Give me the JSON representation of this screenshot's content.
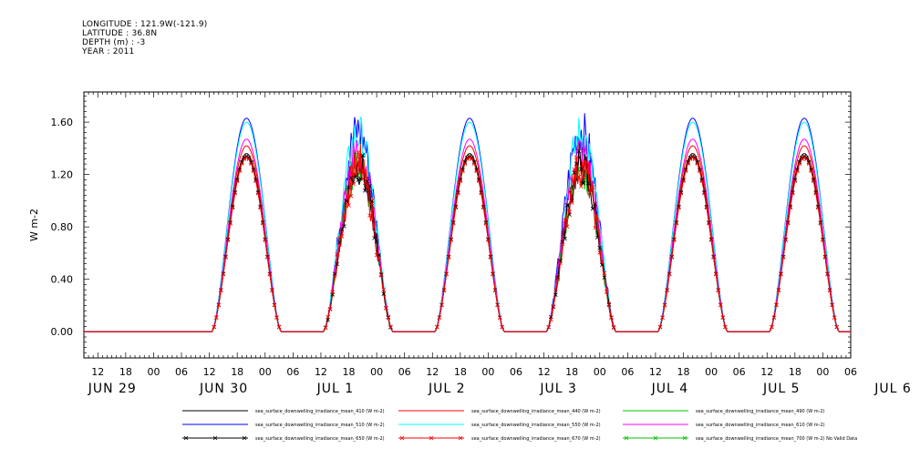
{
  "header": {
    "longitude": "LONGITUDE : 121.9W(-121.9)",
    "latitude": "LATITUDE : 36.8N",
    "depth": "DEPTH (m) : -3",
    "year": "YEAR : 2011"
  },
  "colors": {
    "s410": "#000000",
    "s440": "#ff0000",
    "s490": "#00c000",
    "s510": "#0000ff",
    "s550": "#00ffff",
    "s610": "#ff00ff",
    "s650": "#000000",
    "s670": "#ff0000",
    "s700": "#00c000"
  },
  "chart_data": {
    "type": "line",
    "ylabel": "W m-2",
    "ylim": [
      -0.2,
      1.83
    ],
    "y_ticks": [
      "0.00",
      "0.40",
      "0.80",
      "1.20",
      "1.60"
    ],
    "x_hour_labels": [
      "12",
      "18",
      "00",
      "06",
      "12",
      "18",
      "00",
      "06",
      "12",
      "18",
      "00",
      "06",
      "12",
      "18",
      "00",
      "06",
      "12",
      "18",
      "00",
      "06",
      "12",
      "18",
      "00",
      "06",
      "12",
      "18",
      "00",
      "06",
      "12",
      "18",
      "00",
      "06"
    ],
    "day_labels": [
      "JUN 29",
      "JUN 30",
      "JUL  1",
      "JUL  2",
      "JUL  3",
      "JUL  4",
      "JUL  5",
      "JUL  6"
    ],
    "x_range_hours": [
      -15,
      150
    ],
    "days": [
      {
        "name": "JUN 29",
        "sunrise": 12.5,
        "sunset": 27.5,
        "scale": 1.0,
        "noisy": false
      },
      {
        "name": "JUN 30",
        "sunrise": 36.5,
        "sunset": 51.5,
        "scale": 0.98,
        "noisy": true
      },
      {
        "name": "JUL  1",
        "sunrise": 60.5,
        "sunset": 75.5,
        "scale": 1.0,
        "noisy": false
      },
      {
        "name": "JUL  2",
        "sunrise": 84.5,
        "sunset": 99.5,
        "scale": 0.98,
        "noisy": true
      },
      {
        "name": "JUL  3",
        "sunrise": 108.5,
        "sunset": 123.5,
        "scale": 1.0,
        "noisy": false
      },
      {
        "name": "JUL  4",
        "sunrise": 132.5,
        "sunset": 147.5,
        "scale": 1.0,
        "noisy": false
      },
      {
        "name": "JUL  5",
        "sunrise": 156.5,
        "sunset": 171.5,
        "scale": 0.78,
        "noisy": true
      }
    ],
    "series": [
      {
        "name": "sea_surface_downwelling_irradiance_mean_410 (W m-2)",
        "peak": 1.36,
        "color_key": "s410",
        "marker": false
      },
      {
        "name": "sea_surface_downwelling_irradiance_mean_440 (W m-2)",
        "peak": 1.42,
        "color_key": "s440",
        "marker": false
      },
      {
        "name": "sea_surface_downwelling_irradiance_mean_490 (W m-2)",
        "peak": 1.33,
        "color_key": "s490",
        "marker": false
      },
      {
        "name": "sea_surface_downwelling_irradiance_mean_510 (W m-2)",
        "peak": 1.63,
        "color_key": "s510",
        "marker": false
      },
      {
        "name": "sea_surface_downwelling_irradiance_mean_550 (W m-2)",
        "peak": 1.6,
        "color_key": "s550",
        "marker": false
      },
      {
        "name": "sea_surface_downwelling_irradiance_mean_610 (W m-2)",
        "peak": 1.47,
        "color_key": "s610",
        "marker": false
      },
      {
        "name": "sea_surface_downwelling_irradiance_mean_650 (W m-2)",
        "peak": 1.34,
        "color_key": "s650",
        "marker": true
      },
      {
        "name": "sea_surface_downwelling_irradiance_mean_670 (W m-2)",
        "peak": 1.33,
        "color_key": "s670",
        "marker": true
      },
      {
        "name": "sea_surface_downwelling_irradiance_mean_700 (W m-2) No Valid Data",
        "peak": null,
        "color_key": "s700",
        "marker": true
      }
    ]
  }
}
